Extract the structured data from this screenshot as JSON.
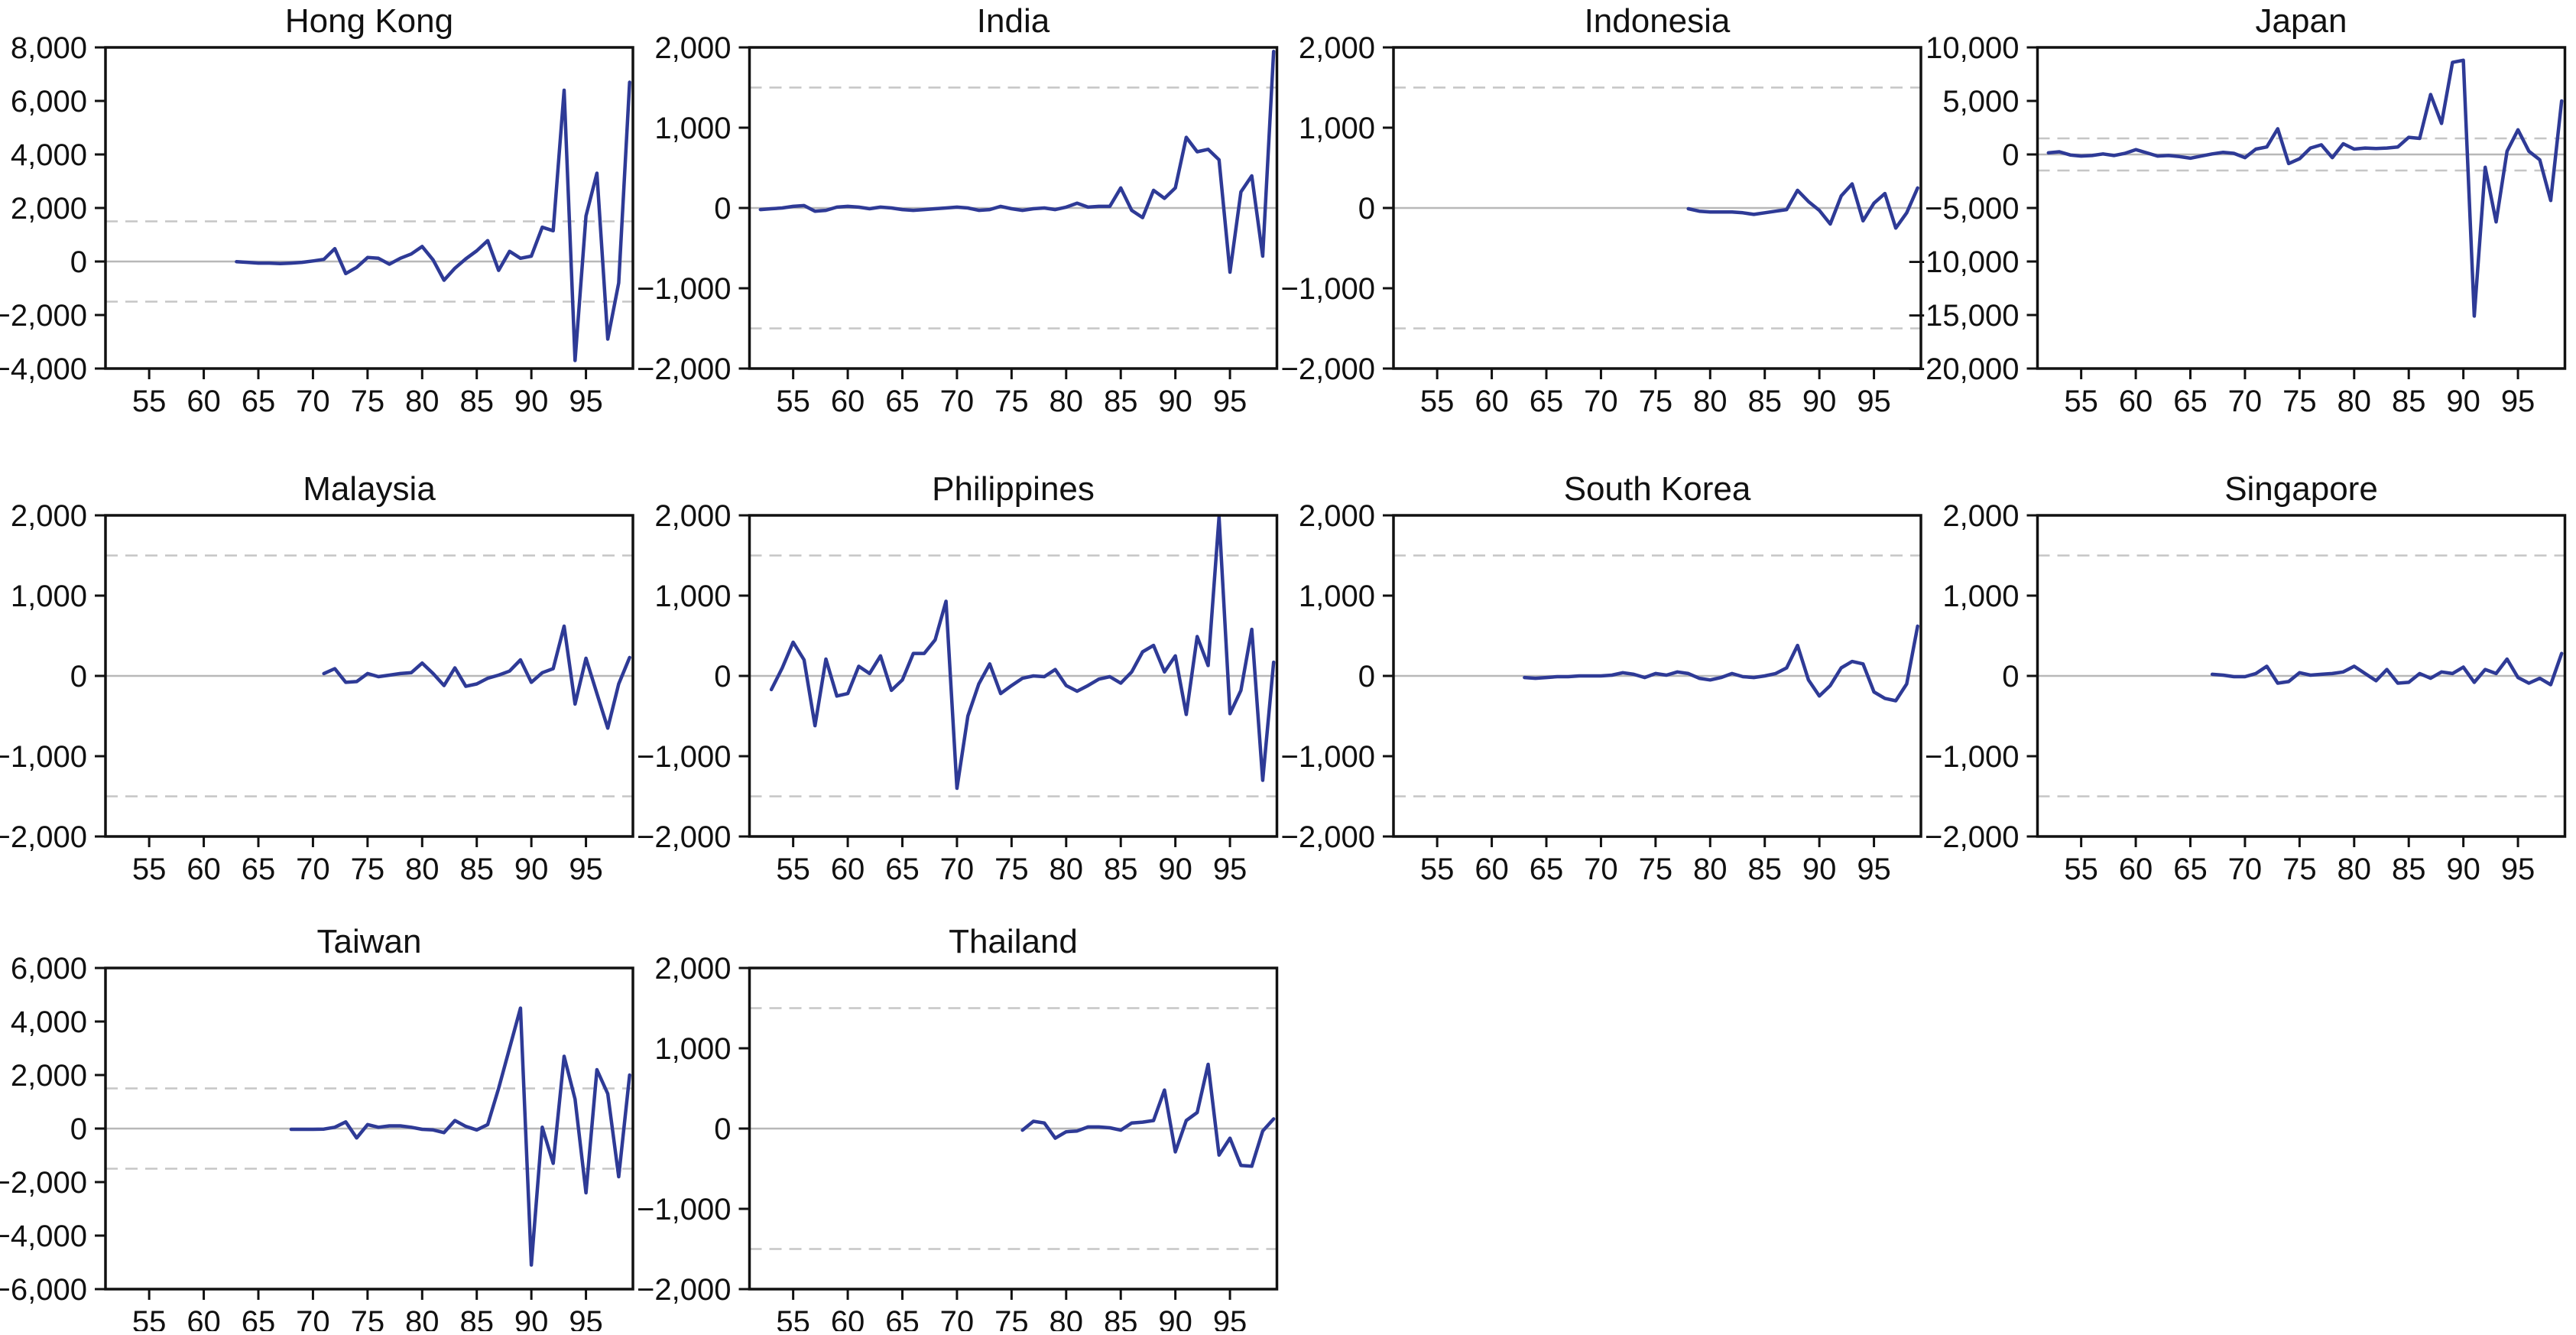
{
  "figure": {
    "background": "#ffffff",
    "series_color": "#2e3a96",
    "axis_color": "#111111",
    "zero_line_color": "#b8b8b8",
    "band_line_color": "#c6c6c6",
    "band_values": [
      1500,
      -1500
    ],
    "x_ticks": [
      55,
      60,
      65,
      70,
      75,
      80,
      85,
      90,
      95
    ],
    "x_range": [
      1951,
      1999.3
    ],
    "grid": "dashed bands at +1500 and -1500, solid gray zero line, no other gridlines",
    "legend": "none"
  },
  "chart_data": [
    {
      "type": "line",
      "title": "Hong Kong",
      "slug": "hong-kong",
      "row": 0,
      "col": 0,
      "ylim": [
        -4000,
        8000
      ],
      "y_ticks": [
        8000,
        6000,
        4000,
        2000,
        0,
        -2000,
        -4000
      ],
      "start_year": 1963,
      "values": [
        -10,
        -30,
        -60,
        -60,
        -80,
        -60,
        -30,
        20,
        80,
        480,
        -450,
        -220,
        150,
        120,
        -100,
        120,
        280,
        560,
        60,
        -700,
        -250,
        100,
        400,
        780,
        -330,
        380,
        120,
        200,
        1280,
        1150,
        6400,
        -3700,
        1700,
        3300,
        -2900,
        -800,
        6700
      ]
    },
    {
      "type": "line",
      "title": "India",
      "slug": "india",
      "row": 0,
      "col": 1,
      "ylim": [
        -2000,
        2000
      ],
      "y_ticks": [
        2000,
        1000,
        0,
        -1000,
        -2000
      ],
      "start_year": 1952,
      "values": [
        -20,
        -10,
        0,
        20,
        30,
        -40,
        -30,
        10,
        20,
        10,
        -10,
        10,
        0,
        -20,
        -30,
        -20,
        -10,
        0,
        10,
        0,
        -30,
        -20,
        20,
        -10,
        -30,
        -10,
        0,
        -20,
        10,
        60,
        10,
        20,
        20,
        250,
        -30,
        -120,
        220,
        120,
        250,
        880,
        700,
        730,
        600,
        -800,
        200,
        400,
        -600,
        1950
      ]
    },
    {
      "type": "line",
      "title": "Indonesia",
      "slug": "indonesia",
      "row": 0,
      "col": 2,
      "ylim": [
        -2000,
        2000
      ],
      "y_ticks": [
        2000,
        1000,
        0,
        -1000,
        -2000
      ],
      "start_year": 1978,
      "values": [
        -10,
        -40,
        -50,
        -50,
        -50,
        -60,
        -80,
        -60,
        -40,
        -20,
        220,
        80,
        -30,
        -200,
        150,
        300,
        -160,
        60,
        180,
        -250,
        -60,
        250
      ]
    },
    {
      "type": "line",
      "title": "Japan",
      "slug": "japan",
      "row": 0,
      "col": 3,
      "ylim": [
        -20000,
        10000
      ],
      "y_ticks": [
        10000,
        5000,
        0,
        -5000,
        -10000,
        -15000,
        -20000
      ],
      "start_year": 1952,
      "values": [
        150,
        250,
        -50,
        -150,
        -100,
        50,
        -100,
        100,
        450,
        150,
        -150,
        -100,
        -200,
        -350,
        -150,
        50,
        200,
        100,
        -300,
        500,
        700,
        2400,
        -850,
        -400,
        600,
        900,
        -300,
        1000,
        500,
        600,
        550,
        600,
        700,
        1600,
        1500,
        5600,
        2900,
        8600,
        8800,
        -15100,
        -1200,
        -6300,
        300,
        2300,
        300,
        -500,
        -4300,
        5000
      ]
    },
    {
      "type": "line",
      "title": "Malaysia",
      "slug": "malaysia",
      "row": 1,
      "col": 0,
      "ylim": [
        -2000,
        2000
      ],
      "y_ticks": [
        2000,
        1000,
        0,
        -1000,
        -2000
      ],
      "start_year": 1971,
      "values": [
        30,
        90,
        -80,
        -70,
        30,
        -10,
        10,
        30,
        40,
        160,
        30,
        -120,
        100,
        -130,
        -100,
        -30,
        10,
        60,
        200,
        -80,
        40,
        90,
        620,
        -350,
        220,
        -220,
        -650,
        -100,
        230
      ]
    },
    {
      "type": "line",
      "title": "Philippines",
      "slug": "philippines",
      "row": 1,
      "col": 1,
      "ylim": [
        -2000,
        2000
      ],
      "y_ticks": [
        2000,
        1000,
        0,
        -1000,
        -2000
      ],
      "start_year": 1953,
      "values": [
        -170,
        100,
        420,
        200,
        -620,
        210,
        -250,
        -220,
        120,
        30,
        250,
        -180,
        -50,
        280,
        280,
        450,
        930,
        -1400,
        -500,
        -100,
        150,
        -220,
        -120,
        -30,
        0,
        -10,
        80,
        -120,
        -190,
        -120,
        -40,
        -10,
        -90,
        50,
        300,
        380,
        50,
        250,
        -480,
        490,
        130,
        1980,
        -470,
        -180,
        580,
        -1300,
        170
      ]
    },
    {
      "type": "line",
      "title": "South Korea",
      "slug": "south-korea",
      "row": 1,
      "col": 2,
      "ylim": [
        -2000,
        2000
      ],
      "y_ticks": [
        2000,
        1000,
        0,
        -1000,
        -2000
      ],
      "start_year": 1963,
      "values": [
        -20,
        -30,
        -20,
        -10,
        -10,
        0,
        0,
        0,
        10,
        40,
        20,
        -20,
        30,
        10,
        50,
        30,
        -30,
        -50,
        -20,
        30,
        -10,
        -20,
        0,
        30,
        100,
        380,
        -50,
        -250,
        -120,
        100,
        180,
        150,
        -200,
        -280,
        -310,
        -100,
        620
      ]
    },
    {
      "type": "line",
      "title": "Singapore",
      "slug": "singapore",
      "row": 1,
      "col": 3,
      "ylim": [
        -2000,
        2000
      ],
      "y_ticks": [
        2000,
        1000,
        0,
        -1000,
        -2000
      ],
      "start_year": 1967,
      "values": [
        20,
        10,
        -10,
        -10,
        30,
        120,
        -90,
        -70,
        40,
        10,
        20,
        30,
        50,
        120,
        30,
        -60,
        80,
        -90,
        -80,
        30,
        -30,
        50,
        30,
        110,
        -80,
        80,
        30,
        210,
        -20,
        -90,
        -30,
        -110,
        280
      ]
    },
    {
      "type": "line",
      "title": "Taiwan",
      "slug": "taiwan",
      "row": 2,
      "col": 0,
      "ylim": [
        -6000,
        6000
      ],
      "y_ticks": [
        6000,
        4000,
        2000,
        0,
        -2000,
        -4000,
        -6000
      ],
      "start_year": 1968,
      "values": [
        -30,
        -30,
        -30,
        -20,
        50,
        250,
        -350,
        150,
        50,
        100,
        100,
        50,
        -30,
        -50,
        -150,
        300,
        80,
        -50,
        150,
        1500,
        3000,
        4500,
        -5100,
        50,
        -1300,
        2700,
        1100,
        -2400,
        2200,
        1300,
        -1800,
        2000
      ]
    },
    {
      "type": "line",
      "title": "Thailand",
      "slug": "thailand",
      "row": 2,
      "col": 1,
      "ylim": [
        -2000,
        2000
      ],
      "y_ticks": [
        2000,
        1000,
        0,
        -1000,
        -2000
      ],
      "start_year": 1976,
      "values": [
        -20,
        90,
        70,
        -120,
        -40,
        -30,
        20,
        20,
        10,
        -20,
        70,
        80,
        100,
        480,
        -290,
        100,
        200,
        800,
        -330,
        -120,
        -460,
        -470,
        -30,
        120
      ]
    }
  ]
}
